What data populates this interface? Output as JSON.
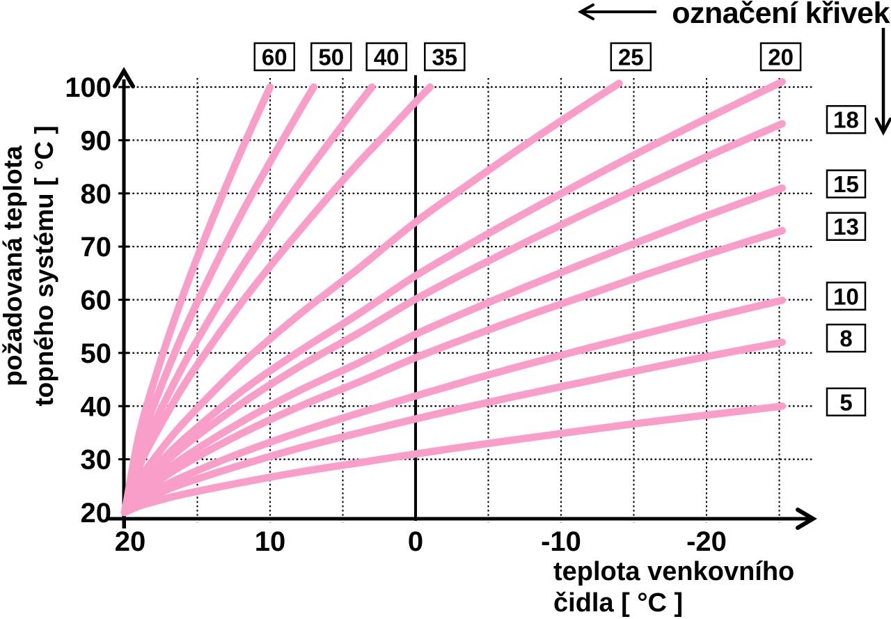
{
  "colors": {
    "curve": "#F89EC8",
    "ink": "#000000",
    "background": "#FFFFFF",
    "label_box_fill": "#FFFFFF"
  },
  "chart_data": {
    "type": "line",
    "title": "",
    "annotation": "označení křivek",
    "ylabel": "požadovaná teplota topného systému [ °C ]",
    "xlabel": "teplota venkovního čidla [ °C ]",
    "ylabel_lines": [
      "požadovaná teplota",
      "topného systému [ °C ]"
    ],
    "xlabel_lines": [
      "teplota venkovního",
      "čidla [ °C ]"
    ],
    "x": {
      "range": [
        20,
        -26
      ],
      "reversed": true,
      "tick_labels": [
        20,
        10,
        0,
        -10,
        -20
      ],
      "gridlines": [
        15,
        10,
        5,
        -5,
        -10,
        -15,
        -20,
        -25
      ],
      "zero_line": 0
    },
    "y": {
      "range": [
        20,
        100
      ],
      "tick_labels": [
        100,
        90,
        80,
        70,
        60,
        50,
        40,
        30,
        20
      ],
      "gridlines": [
        100,
        90,
        80,
        70,
        60,
        50,
        40,
        30
      ]
    },
    "grid": "dotted",
    "legend_position": "boxes-top-and-right",
    "series": [
      {
        "name": "60",
        "label": "60",
        "label_position": "top",
        "label_anchor_x": 9.7,
        "points": [
          [
            20,
            20
          ],
          [
            19,
            34.7
          ],
          [
            18,
            44.4
          ],
          [
            17,
            52.9
          ],
          [
            16,
            60.7
          ],
          [
            15,
            68
          ],
          [
            14,
            74.9
          ],
          [
            13,
            81.5
          ],
          [
            12,
            87.9
          ],
          [
            11,
            94
          ],
          [
            10,
            100
          ]
        ]
      },
      {
        "name": "50",
        "label": "50",
        "label_position": "top",
        "label_anchor_x": 5.8,
        "points": [
          [
            20,
            20
          ],
          [
            19,
            32.1
          ],
          [
            18,
            40.1
          ],
          [
            16,
            53.6
          ],
          [
            14,
            65.2
          ],
          [
            12,
            76
          ],
          [
            10,
            85.9
          ],
          [
            8,
            95.4
          ],
          [
            7,
            100
          ]
        ]
      },
      {
        "name": "40",
        "label": "40",
        "label_position": "top",
        "label_anchor_x": 2.0,
        "points": [
          [
            20,
            20
          ],
          [
            19,
            29.9
          ],
          [
            18,
            36.5
          ],
          [
            16,
            47.5
          ],
          [
            14,
            57.1
          ],
          [
            12,
            65.9
          ],
          [
            10,
            74.1
          ],
          [
            8,
            81.9
          ],
          [
            6,
            89.3
          ],
          [
            4,
            96.5
          ],
          [
            3,
            100
          ]
        ]
      },
      {
        "name": "35",
        "label": "35",
        "label_position": "top",
        "label_anchor_x": -2.0,
        "points": [
          [
            20,
            20
          ],
          [
            19,
            28.5
          ],
          [
            18,
            34.1
          ],
          [
            16,
            43.6
          ],
          [
            14,
            51.7
          ],
          [
            12,
            59.3
          ],
          [
            10,
            66.3
          ],
          [
            8,
            72.9
          ],
          [
            6,
            79.3
          ],
          [
            4,
            85.5
          ],
          [
            2,
            91.3
          ],
          [
            0,
            97.2
          ],
          [
            -1,
            100
          ]
        ]
      },
      {
        "name": "25",
        "label": "25",
        "label_position": "top",
        "label_anchor_x": -14.8,
        "points": [
          [
            20,
            20
          ],
          [
            19,
            26
          ],
          [
            18,
            30
          ],
          [
            16,
            36.7
          ],
          [
            12,
            47.8
          ],
          [
            8,
            57.2
          ],
          [
            4,
            65.7
          ],
          [
            0,
            74.6
          ],
          [
            -4,
            82.4
          ],
          [
            -8,
            90
          ],
          [
            -12,
            97.2
          ],
          [
            -14,
            100.7
          ]
        ]
      },
      {
        "name": "20",
        "label": "20",
        "label_position": "top",
        "label_anchor_x": -25.1,
        "points": [
          [
            20,
            20
          ],
          [
            19,
            24.9
          ],
          [
            18,
            28.2
          ],
          [
            16,
            33.6
          ],
          [
            12,
            42.7
          ],
          [
            8,
            50.3
          ],
          [
            4,
            57.2
          ],
          [
            0,
            64.5
          ],
          [
            -4,
            70.9
          ],
          [
            -8,
            77
          ],
          [
            -12,
            82.9
          ],
          [
            -16,
            88.6
          ],
          [
            -20,
            94.1
          ],
          [
            -25.2,
            101
          ]
        ]
      },
      {
        "name": "18",
        "label": "18",
        "label_position": "right",
        "points": [
          [
            20,
            20
          ],
          [
            19,
            24.4
          ],
          [
            18,
            27.4
          ],
          [
            16,
            32.3
          ],
          [
            12,
            40.4
          ],
          [
            8,
            47.4
          ],
          [
            4,
            53.6
          ],
          [
            0,
            60.1
          ],
          [
            -4,
            65.9
          ],
          [
            -8,
            71.4
          ],
          [
            -12,
            76.7
          ],
          [
            -16,
            81.8
          ],
          [
            -20,
            86.9
          ],
          [
            -25.2,
            93.1
          ]
        ]
      },
      {
        "name": "15",
        "label": "15",
        "label_position": "right",
        "points": [
          [
            20,
            20
          ],
          [
            19,
            23.7
          ],
          [
            18,
            26.1
          ],
          [
            16,
            30.2
          ],
          [
            12,
            37
          ],
          [
            8,
            42.9
          ],
          [
            4,
            48
          ],
          [
            0,
            53.5
          ],
          [
            -4,
            58.3
          ],
          [
            -8,
            62.9
          ],
          [
            -12,
            67.3
          ],
          [
            -16,
            71.6
          ],
          [
            -20,
            75.8
          ],
          [
            -25.2,
            81
          ]
        ]
      },
      {
        "name": "13",
        "label": "13",
        "label_position": "right",
        "points": [
          [
            20,
            20
          ],
          [
            19,
            23.2
          ],
          [
            18,
            25.3
          ],
          [
            16,
            28.9
          ],
          [
            12,
            34.8
          ],
          [
            8,
            39.9
          ],
          [
            4,
            44.4
          ],
          [
            0,
            49.1
          ],
          [
            -4,
            53.3
          ],
          [
            -8,
            57.3
          ],
          [
            -12,
            61.1
          ],
          [
            -16,
            64.9
          ],
          [
            -20,
            68.5
          ],
          [
            -25.2,
            73
          ]
        ]
      },
      {
        "name": "10",
        "label": "10",
        "label_position": "right",
        "points": [
          [
            20,
            20
          ],
          [
            19,
            22.4
          ],
          [
            18,
            24
          ],
          [
            16,
            26.7
          ],
          [
            12,
            31.2
          ],
          [
            8,
            35.1
          ],
          [
            4,
            38.6
          ],
          [
            0,
            41.9
          ],
          [
            -4,
            45.1
          ],
          [
            -8,
            48.1
          ],
          [
            -12,
            51
          ],
          [
            -16,
            53.8
          ],
          [
            -20,
            56.5
          ],
          [
            -25.2,
            59.9
          ]
        ]
      },
      {
        "name": "8",
        "label": "8",
        "label_position": "right",
        "points": [
          [
            20,
            20
          ],
          [
            19,
            21.9
          ],
          [
            18,
            23.2
          ],
          [
            16,
            25.4
          ],
          [
            12,
            28.9
          ],
          [
            8,
            32.1
          ],
          [
            4,
            34.9
          ],
          [
            0,
            37.6
          ],
          [
            -4,
            40.1
          ],
          [
            -8,
            42.5
          ],
          [
            -12,
            44.8
          ],
          [
            -16,
            47.1
          ],
          [
            -20,
            49.3
          ],
          [
            -25.2,
            52
          ]
        ]
      },
      {
        "name": "5",
        "label": "5",
        "label_position": "right",
        "points": [
          [
            20,
            20
          ],
          [
            19,
            21.2
          ],
          [
            18,
            22
          ],
          [
            16,
            23.4
          ],
          [
            12,
            25.6
          ],
          [
            8,
            27.6
          ],
          [
            4,
            29.3
          ],
          [
            0,
            31
          ],
          [
            -4,
            32.6
          ],
          [
            -8,
            34.1
          ],
          [
            -12,
            35.6
          ],
          [
            -16,
            37
          ],
          [
            -20,
            38.3
          ],
          [
            -25.2,
            40
          ]
        ]
      }
    ]
  }
}
